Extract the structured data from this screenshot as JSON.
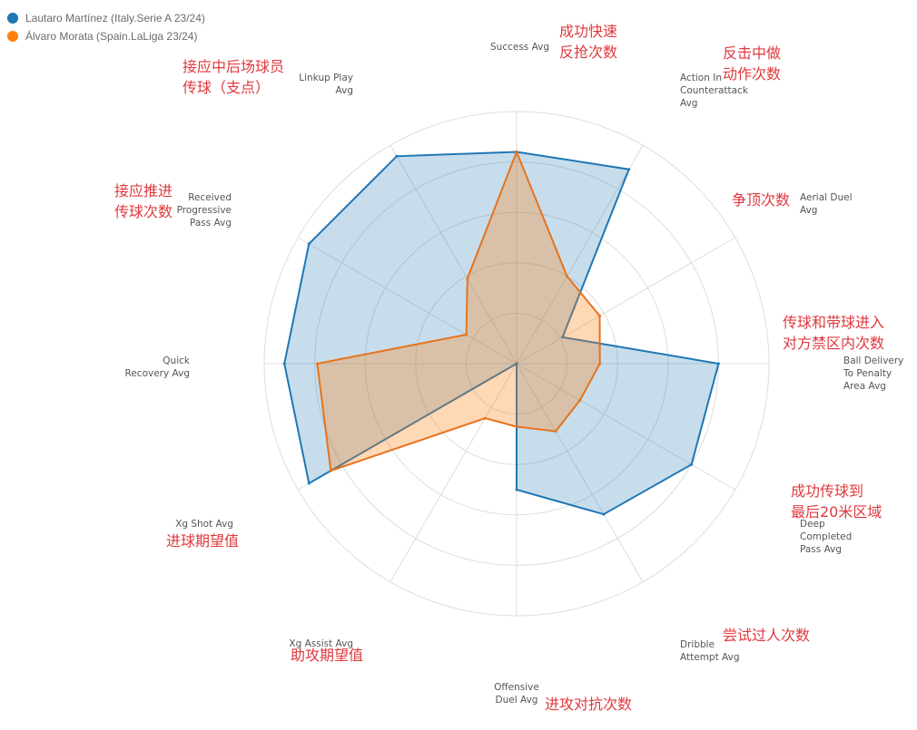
{
  "legend": [
    {
      "name": "Lautaro Martínez (Italy.Serie A 23/24)",
      "color": "#1f77b4"
    },
    {
      "name": "Álvaro Morata (Spain.LaLiga 23/24)",
      "color": "#ff7f0e"
    }
  ],
  "chart_data": {
    "type": "radar",
    "categories": [
      "Success Avg",
      "Action In Counterattack Avg",
      "Aerial Duel Avg",
      "Ball Delivery To Penalty Area Avg",
      "Deep Completed Pass Avg",
      "Dribble Attempt Avg",
      "Offensive Duel Avg",
      "Xg Assist Avg",
      "Xg Shot Avg",
      "Quick Recovery Avg",
      "Received Progressive Pass Avg",
      "Linkup Play Avg"
    ],
    "range": [
      0,
      1
    ],
    "rings": 5,
    "series": [
      {
        "name": "Lautaro Martínez (Italy.Serie A 23/24)",
        "color": "#1f77b4",
        "fill": "rgba(31,119,180,0.25)",
        "values": [
          0.84,
          0.89,
          0.21,
          0.8,
          0.8,
          0.69,
          0.5,
          0.0,
          0.95,
          0.92,
          0.95,
          0.95
        ]
      },
      {
        "name": "Álvaro Morata (Spain.LaLiga 23/24)",
        "color": "#e6731c",
        "fill": "rgba(255,127,14,0.30)",
        "values": [
          0.84,
          0.4,
          0.38,
          0.33,
          0.29,
          0.31,
          0.25,
          0.25,
          0.85,
          0.79,
          0.23,
          0.39
        ]
      }
    ],
    "grid": true
  },
  "annotations": [
    [
      "成功快速",
      "反抢次数"
    ],
    [
      "反击中做",
      "动作次数"
    ],
    [
      "争顶次数"
    ],
    [
      "传球和带球进入",
      "对方禁区内次数"
    ],
    [
      "成功传球到",
      "最后20米区域"
    ],
    [
      "尝试过人次数"
    ],
    [
      "进攻对抗次数"
    ],
    [
      "助攻期望值"
    ],
    [
      "进球期望值"
    ],
    [],
    [
      "接应推进",
      "传球次数"
    ],
    [
      "接应中后场球员",
      "传球（支点）"
    ]
  ]
}
